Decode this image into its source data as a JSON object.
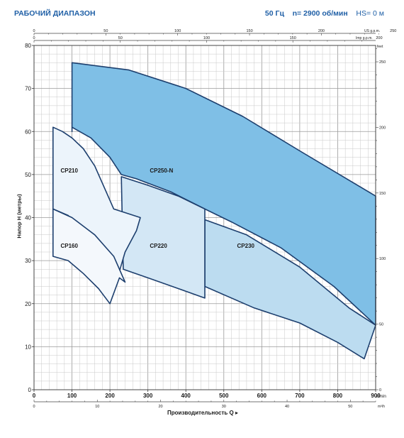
{
  "header": {
    "title": "РАБОЧИЙ ДИАПАЗОН",
    "freq": "50 Гц",
    "speed": "n= 2900 об/мин",
    "hs": "HS= 0 м"
  },
  "chart_data": {
    "type": "area",
    "title": "РАБОЧИЙ ДИАПАЗОН",
    "xlabel": "Производительность Q",
    "ylabel": "Напор H (метры)",
    "x_unit": "l/min",
    "y_unit": "",
    "xlim": [
      0,
      900
    ],
    "ylim": [
      0,
      80
    ],
    "x_ticks": [
      0,
      100,
      200,
      300,
      400,
      500,
      600,
      700,
      800,
      900
    ],
    "y_ticks": [
      0,
      10,
      20,
      30,
      40,
      50,
      60,
      70,
      80
    ],
    "secondary_axes": {
      "top_us_gpm": {
        "label": "US g.p.m.",
        "ticks": [
          0,
          50,
          100,
          150,
          200,
          250
        ]
      },
      "top_imp_gpm": {
        "label": "Imp g.p.m.",
        "ticks": [
          0,
          50,
          100,
          150,
          200
        ]
      },
      "bottom_m3h": {
        "label": "m³/h",
        "ticks": [
          0,
          10,
          20,
          30,
          40,
          50
        ]
      },
      "right_feet": {
        "label": "feet",
        "ticks": [
          0,
          50,
          100,
          150,
          200,
          250
        ]
      }
    },
    "series": [
      {
        "name": "CP250-N",
        "color": "#7fbfe6",
        "points": [
          [
            100,
            60
          ],
          [
            100,
            76
          ],
          [
            250,
            74.3
          ],
          [
            400,
            70
          ],
          [
            550,
            63.5
          ],
          [
            700,
            55.5
          ],
          [
            900,
            45
          ],
          [
            900,
            15
          ],
          [
            790,
            24
          ],
          [
            650,
            33
          ],
          [
            520,
            39
          ],
          [
            450,
            42
          ],
          [
            360,
            46
          ],
          [
            270,
            49
          ],
          [
            230,
            50
          ],
          [
            200,
            54
          ],
          [
            150,
            58.5
          ],
          [
            100,
            61
          ]
        ]
      },
      {
        "name": "CP230",
        "color": "#bcdcf0",
        "points": [
          [
            450,
            39.5
          ],
          [
            560,
            36
          ],
          [
            700,
            28.5
          ],
          [
            830,
            19
          ],
          [
            900,
            15
          ],
          [
            870,
            7.2
          ],
          [
            800,
            11
          ],
          [
            700,
            15.5
          ],
          [
            580,
            19
          ],
          [
            450,
            24
          ]
        ]
      },
      {
        "name": "CP220",
        "color": "#d3e7f5",
        "points": [
          [
            230,
            49.5
          ],
          [
            300,
            47.5
          ],
          [
            380,
            45
          ],
          [
            450,
            42
          ],
          [
            450,
            21.3
          ],
          [
            380,
            23.5
          ],
          [
            300,
            26
          ],
          [
            235,
            28
          ]
        ]
      },
      {
        "name": "CP210",
        "color": "#ecf4fb",
        "points": [
          [
            50,
            61
          ],
          [
            75,
            60
          ],
          [
            100,
            58.5
          ],
          [
            130,
            56
          ],
          [
            160,
            52
          ],
          [
            185,
            47
          ],
          [
            210,
            42
          ],
          [
            280,
            40
          ],
          [
            270,
            37
          ],
          [
            240,
            32
          ],
          [
            220,
            26
          ],
          [
            180,
            30
          ],
          [
            130,
            36
          ],
          [
            90,
            40.5
          ],
          [
            50,
            42
          ]
        ]
      },
      {
        "name": "CP160",
        "color": "#f4f8fc",
        "points": [
          [
            50,
            42
          ],
          [
            100,
            40
          ],
          [
            160,
            36
          ],
          [
            210,
            31
          ],
          [
            240,
            25
          ],
          [
            225,
            26
          ],
          [
            200,
            20
          ],
          [
            170,
            23.5
          ],
          [
            130,
            27
          ],
          [
            90,
            30
          ],
          [
            50,
            31
          ]
        ]
      }
    ],
    "annotations": [
      {
        "text": "CP210",
        "x": 70,
        "y": 50.5
      },
      {
        "text": "CP250-N",
        "x": 305,
        "y": 50.5
      },
      {
        "text": "CP160",
        "x": 70,
        "y": 33
      },
      {
        "text": "CP220",
        "x": 305,
        "y": 33
      },
      {
        "text": "CP230",
        "x": 535,
        "y": 33
      }
    ]
  }
}
